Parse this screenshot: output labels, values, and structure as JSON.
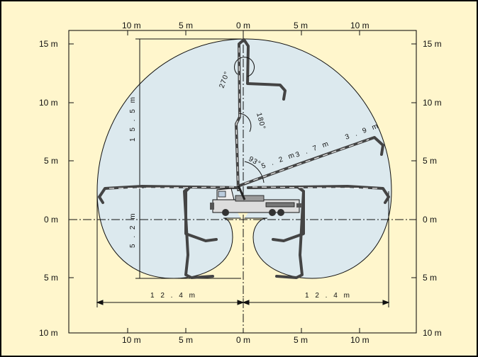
{
  "diagram": {
    "colors": {
      "background": "#FFF6CC",
      "reach_area": "#DCE9EE",
      "border": "#000000",
      "boom": "#444444"
    },
    "axis_labels": {
      "top": [
        "10 m",
        "5 m",
        "0 m",
        "5 m",
        "10 m"
      ],
      "bottom": [
        "10 m",
        "5 m",
        "0 m",
        "5 m",
        "10 m"
      ],
      "left": [
        "15 m",
        "10 m",
        "5 m",
        "0 m",
        "5 m",
        "10 m"
      ],
      "right": [
        "15 m",
        "10 m",
        "5 m",
        "0 m",
        "5 m",
        "10 m"
      ]
    },
    "dimensions": {
      "vertical_reach": "1 5 . 5 m",
      "depth": "5 . 2 m",
      "left_width": "1 2 . 4 m",
      "right_width": "1 2 . 4 m",
      "boom_section_1": "5 . 2 m",
      "boom_section_2": "3 . 7 m",
      "boom_section_3": "3 . 9 m"
    },
    "angles": {
      "fold_1": "93°",
      "fold_2": "180°",
      "fold_3": "270°"
    },
    "icons": {
      "truck": "concrete-pump-truck-icon"
    }
  }
}
